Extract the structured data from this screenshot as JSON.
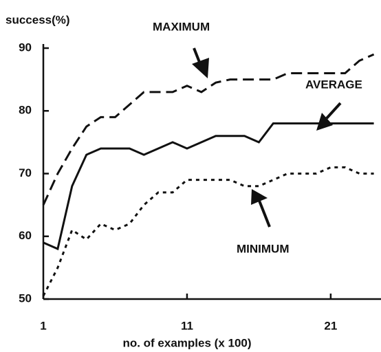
{
  "chart_data": {
    "type": "line",
    "ylabel": "success(%)",
    "xlabel": "no. of examples (x 100)",
    "x": [
      1,
      2,
      3,
      4,
      5,
      6,
      7,
      8,
      9,
      10,
      11,
      12,
      13,
      14,
      15,
      16,
      17,
      18,
      19,
      20,
      21,
      22,
      23,
      24
    ],
    "series": [
      {
        "name": "MAXIMUM",
        "color": "#111111",
        "dash": "dashed",
        "values": [
          65,
          70,
          74,
          77.5,
          79,
          79,
          81,
          83,
          83,
          83,
          84,
          83,
          84.5,
          85,
          85,
          85,
          85,
          86,
          86,
          86,
          86,
          86,
          88,
          89
        ]
      },
      {
        "name": "AVERAGE",
        "color": "#111111",
        "dash": "solid",
        "values": [
          59,
          58,
          68,
          73,
          74,
          74,
          74,
          73,
          74,
          75,
          74,
          75,
          76,
          76,
          76,
          75,
          78,
          78,
          78,
          78,
          78,
          78,
          78,
          78
        ]
      },
      {
        "name": "MINIMUM",
        "color": "#111111",
        "dash": "dotted",
        "values": [
          50.5,
          55,
          61,
          59.5,
          62,
          61,
          62,
          65,
          67,
          67,
          69,
          69,
          69,
          69,
          68,
          68,
          69,
          70,
          70,
          70,
          71,
          71,
          70,
          70
        ]
      }
    ],
    "xlim": [
      1,
      24.5
    ],
    "xticks": [
      1,
      11,
      21
    ],
    "ylim": [
      50,
      90
    ],
    "yticks": [
      50,
      60,
      70,
      80,
      90
    ]
  }
}
